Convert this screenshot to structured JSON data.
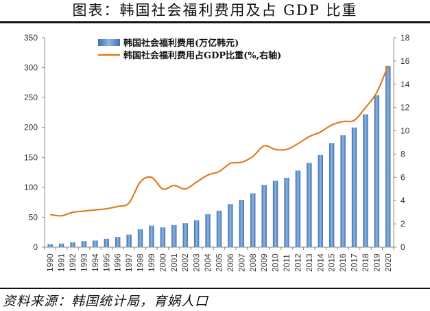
{
  "title": "图表：韩国社会福利费用及占 GDP 比重",
  "source": "资料来源：韩国统计局，育娲人口",
  "colors": {
    "bar": "#5b8fc9",
    "line": "#e07b1e"
  },
  "chart_data": {
    "type": "bar+line",
    "categories": [
      "1990",
      "1991",
      "1992",
      "1993",
      "1994",
      "1995",
      "1996",
      "1997",
      "1998",
      "1999",
      "2000",
      "2001",
      "2002",
      "2003",
      "2004",
      "2005",
      "2006",
      "2007",
      "2008",
      "2009",
      "2010",
      "2011",
      "2012",
      "2013",
      "2014",
      "2015",
      "2016",
      "2017",
      "2018",
      "2019",
      "2020"
    ],
    "series": [
      {
        "name": "韩国社会福利费用(万亿韩元)",
        "type": "bar",
        "axis": "left",
        "values": [
          5,
          6,
          8,
          10,
          11,
          14,
          17,
          21,
          30,
          36,
          33,
          37,
          40,
          45,
          55,
          61,
          72,
          79,
          90,
          104,
          111,
          116,
          128,
          141,
          154,
          174,
          187,
          200,
          222,
          254,
          303
        ]
      },
      {
        "name": "韩国社会福利费用占GDP比重(%,右轴)",
        "type": "line",
        "axis": "right",
        "values": [
          2.8,
          2.7,
          3.0,
          3.1,
          3.2,
          3.3,
          3.5,
          3.8,
          5.6,
          6.0,
          5.0,
          5.3,
          5.0,
          5.6,
          6.2,
          6.5,
          7.2,
          7.3,
          7.8,
          8.7,
          8.4,
          8.4,
          8.9,
          9.5,
          9.9,
          10.5,
          10.8,
          10.9,
          12.0,
          13.3,
          15.6
        ]
      }
    ],
    "ylim_left": [
      0,
      350
    ],
    "yticks_left": [
      "0",
      "50",
      "100",
      "150",
      "200",
      "250",
      "300",
      "350"
    ],
    "ylim_right": [
      0,
      18
    ],
    "yticks_right": [
      "0",
      "2",
      "4",
      "6",
      "8",
      "10",
      "12",
      "14",
      "16",
      "18"
    ],
    "legend_position": "top-center",
    "grid": false
  }
}
